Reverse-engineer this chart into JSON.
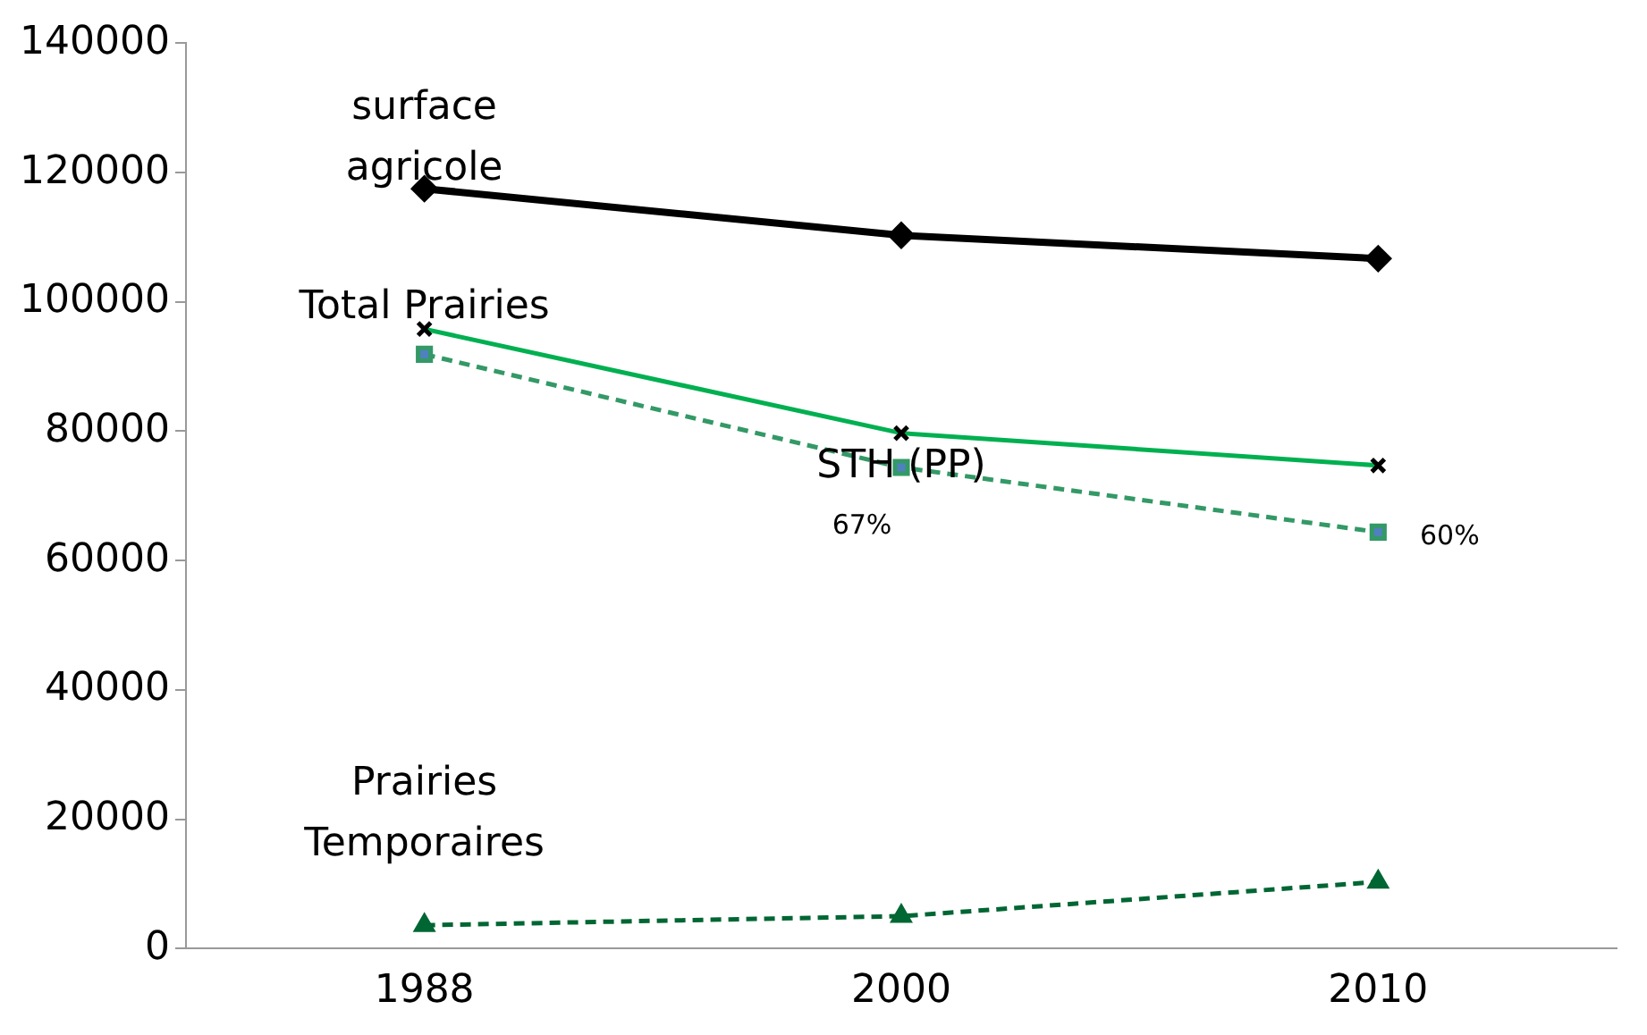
{
  "chart_data": {
    "type": "line",
    "categories": [
      "1988",
      "2000",
      "2010"
    ],
    "series": [
      {
        "name": "surface agricole",
        "color": "#000000",
        "values": [
          117500,
          110300,
          106700
        ],
        "marker": "diamond",
        "line_style": "solid"
      },
      {
        "name": "Total Prairies",
        "color": "#00b050",
        "values": [
          95800,
          79700,
          74700
        ],
        "marker": "cross",
        "line_style": "solid"
      },
      {
        "name": "STH (PP)",
        "color": "#339966",
        "values": [
          91900,
          74400,
          64400
        ],
        "marker": "square",
        "line_style": "dashed"
      },
      {
        "name": "Prairies Temporaires",
        "color": "#006633",
        "values": [
          3600,
          5000,
          10300
        ],
        "marker": "triangle",
        "line_style": "dashed"
      }
    ],
    "ylim": [
      0,
      140000
    ],
    "yticks": [
      0,
      20000,
      40000,
      60000,
      80000,
      100000,
      120000,
      140000
    ],
    "grid": false,
    "legend": false,
    "annotations": [
      "67%",
      "60%"
    ]
  }
}
